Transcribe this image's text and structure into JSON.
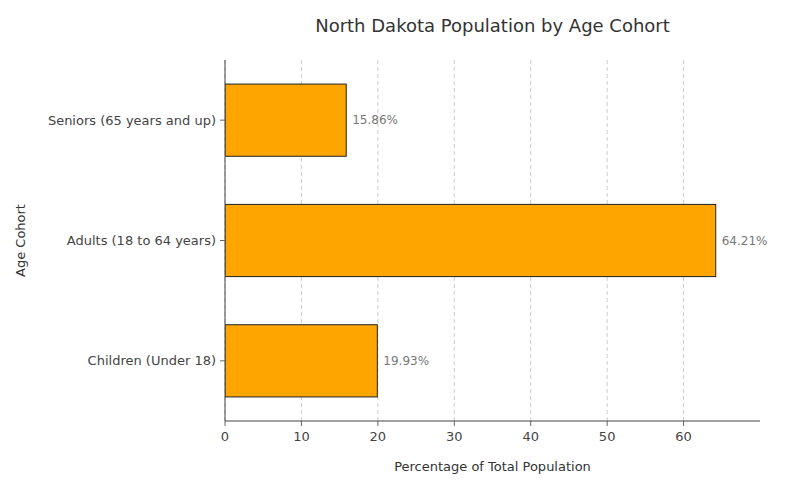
{
  "chart_data": {
    "type": "bar",
    "orientation": "horizontal",
    "title": "North Dakota Population by Age Cohort",
    "xlabel": "Percentage of Total Population",
    "ylabel": "Age Cohort",
    "categories": [
      "Children (Under 18)",
      "Adults (18 to 64 years)",
      "Seniors (65 years and up)"
    ],
    "values": [
      19.93,
      64.21,
      15.86
    ],
    "value_labels": [
      "19.93%",
      "64.21%",
      "15.86%"
    ],
    "data_labels": true,
    "color": "#FFA500",
    "xlim": [
      0,
      70
    ],
    "xticks": [
      0,
      10,
      20,
      30,
      40,
      50,
      60
    ],
    "grid": true
  }
}
